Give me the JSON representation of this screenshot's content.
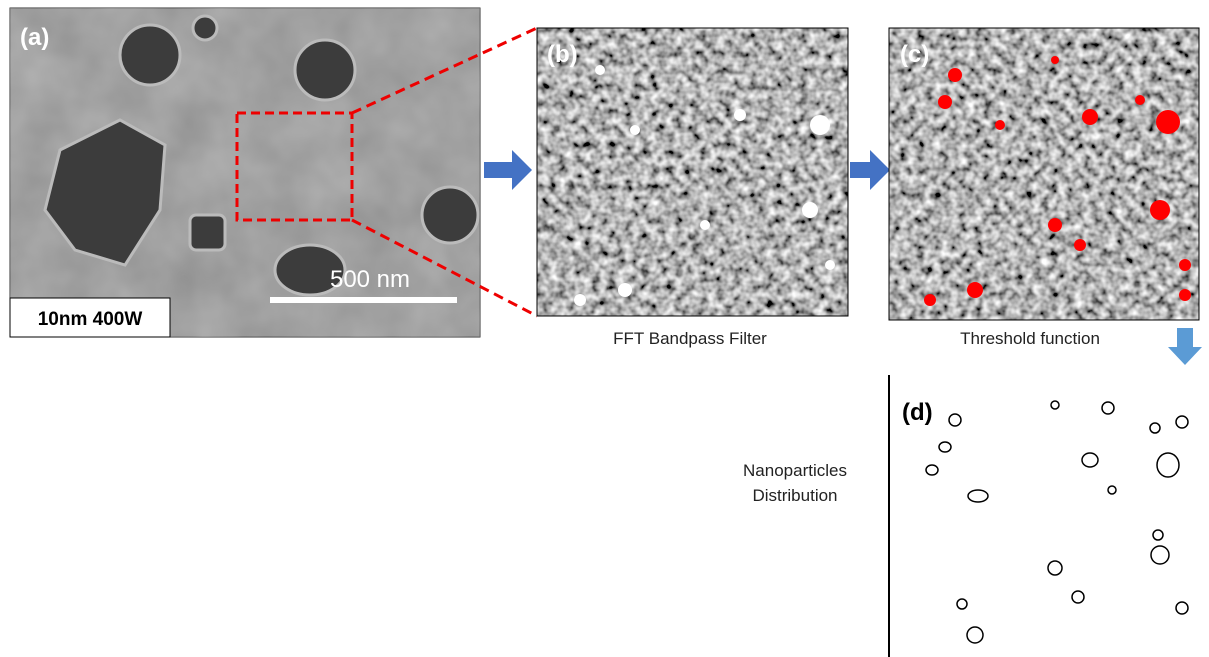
{
  "panels": {
    "a": {
      "label": "(a)",
      "scale_bar": "500 nm",
      "condition": "10nm 400W"
    },
    "b": {
      "label": "(b)",
      "caption": "FFT Bandpass Filter"
    },
    "c": {
      "label": "(c)",
      "caption": "Threshold function"
    },
    "d": {
      "label": "(d)",
      "caption": [
        "Nanoparticles",
        "Distribution"
      ]
    }
  }
}
